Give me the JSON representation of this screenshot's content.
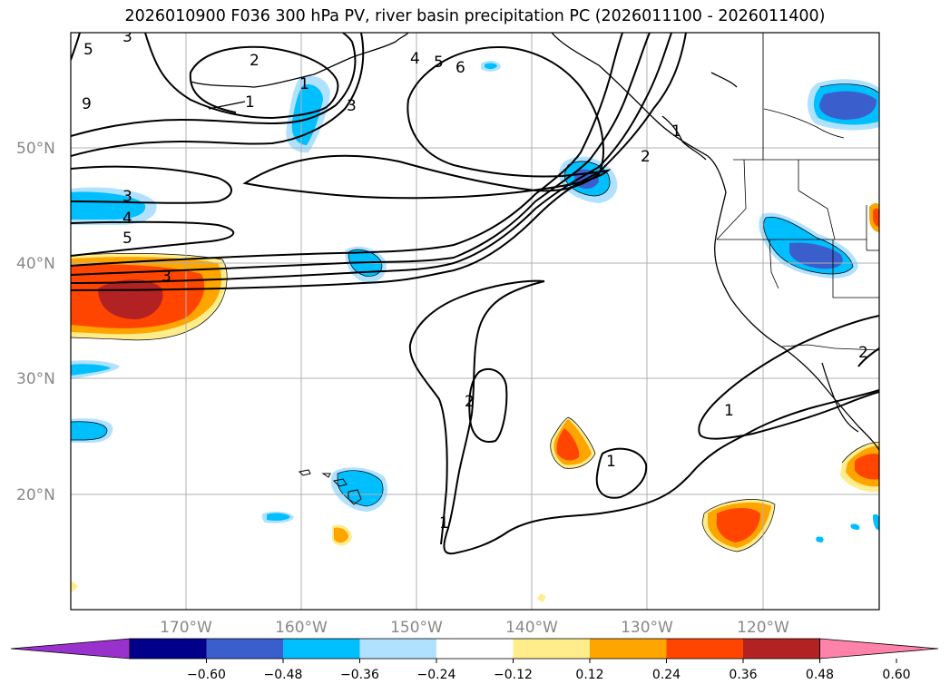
{
  "title": "2026010900 F036 300 hPa PV, river basin precipitation PC (2026011100 - 2026011400)",
  "lat_labels": [
    "50°N",
    "40°N",
    "30°N",
    "20°N"
  ],
  "lon_labels": [
    "170°W",
    "160°W",
    "150°W",
    "140°W",
    "130°W",
    "120°W"
  ],
  "colorbar": {
    "colors": [
      "#9932cc",
      "#00008b",
      "#3a5fcd",
      "#00bfff",
      "#b0e2ff",
      "#ffffff",
      "#ffec8b",
      "#ffa500",
      "#ff4500",
      "#b22222",
      "#ff82ab"
    ],
    "ticks": [
      "−0.60",
      "−0.48",
      "−0.36",
      "−0.24",
      "−0.12",
      "0.12",
      "0.24",
      "0.36",
      "0.48",
      "0.60"
    ]
  },
  "contour_labels": [
    "5",
    "3",
    "2",
    "1",
    "9",
    "1",
    "3",
    "4",
    "5",
    "6",
    "2",
    "3",
    "4",
    "5",
    "3",
    "2",
    "1",
    "1",
    "1",
    "2",
    "1"
  ],
  "colors": {
    "neg_light": "#b0e2ff",
    "neg_mid": "#00bfff",
    "neg_dark": "#3a5fcd",
    "pos_light": "#ffec8b",
    "pos_mid": "#ffa500",
    "pos_strong": "#ff4500",
    "pos_dark": "#b22222"
  }
}
